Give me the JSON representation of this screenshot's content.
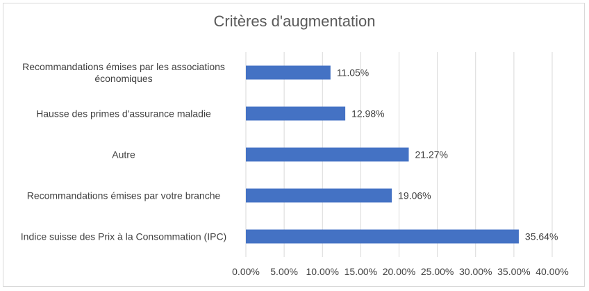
{
  "chart_data": {
    "type": "bar",
    "orientation": "horizontal",
    "title": "Critères d'augmentation",
    "categories": [
      [
        "Recommandations émises par les associations",
        "économiques"
      ],
      [
        "Hausse des primes d'assurance maladie"
      ],
      [
        "Autre"
      ],
      [
        "Recommandations émises par votre branche"
      ],
      [
        "Indice suisse des Prix à la Consommation (IPC)"
      ]
    ],
    "values": [
      11.05,
      12.98,
      21.27,
      19.06,
      35.64
    ],
    "data_labels": [
      "11.05%",
      "12.98%",
      "21.27%",
      "19.06%",
      "35.64%"
    ],
    "xlim": [
      0,
      40
    ],
    "x_ticks": [
      "0.00%",
      "5.00%",
      "10.00%",
      "15.00%",
      "20.00%",
      "25.00%",
      "30.00%",
      "35.00%",
      "40.00%"
    ],
    "grid": true,
    "bar_color": "#4472c4",
    "grid_color": "#d9d9d9"
  }
}
